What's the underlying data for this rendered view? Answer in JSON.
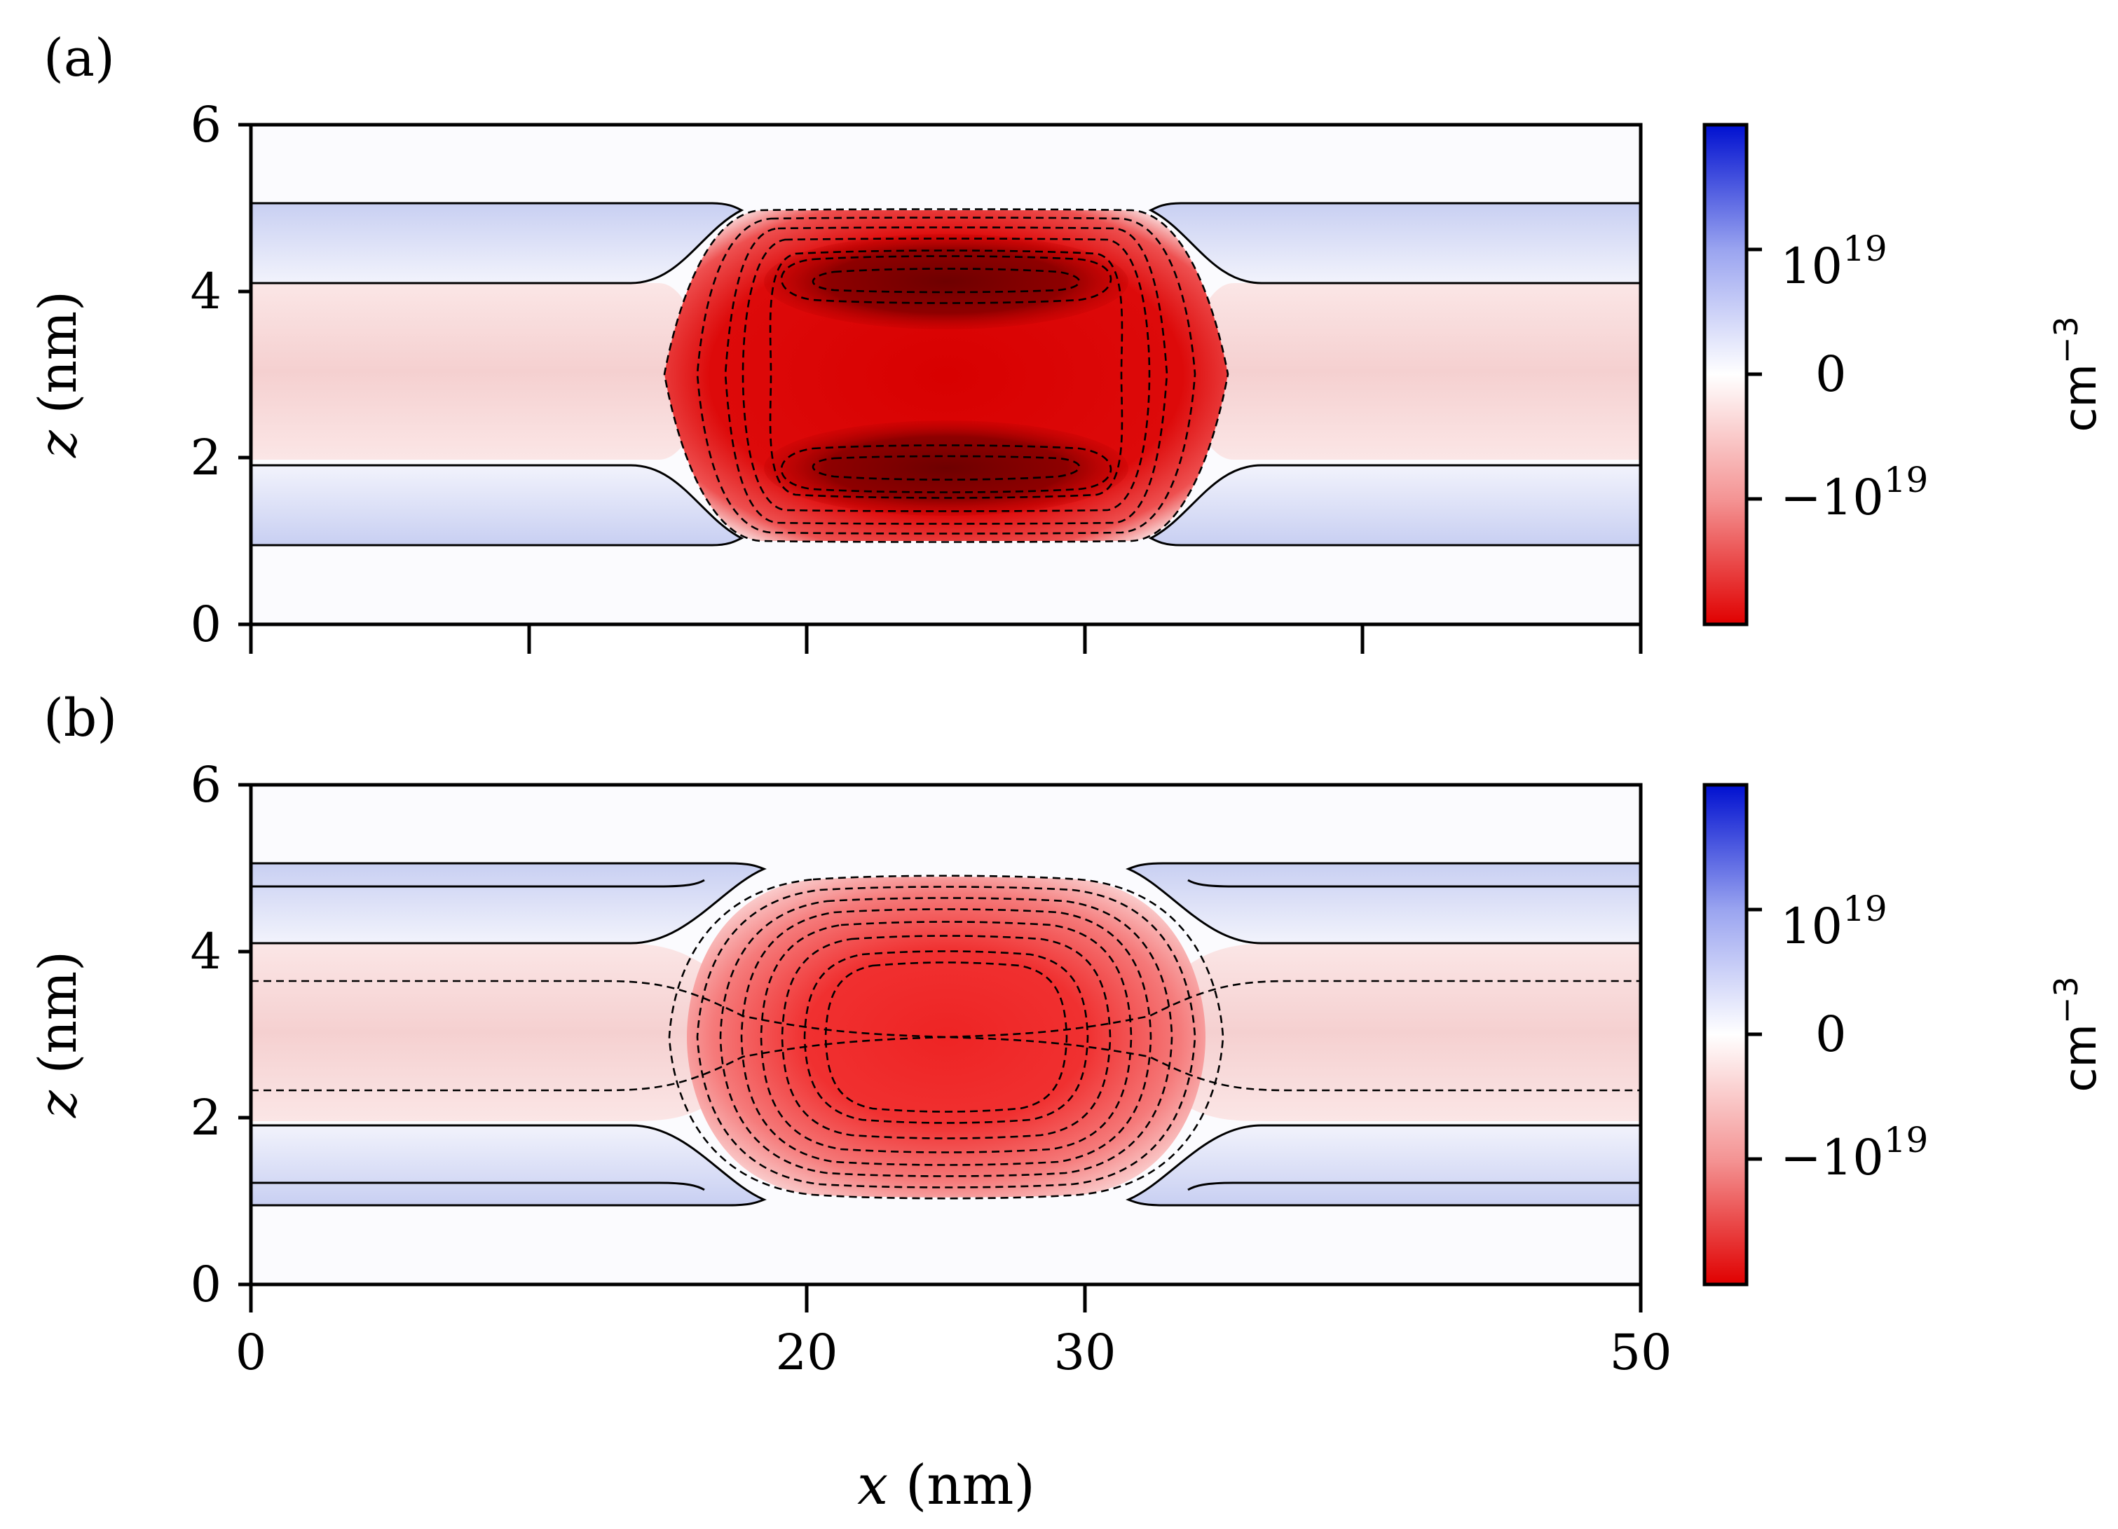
{
  "figure": {
    "x_axis": {
      "label_var": "x",
      "label_unit": "(nm)"
    },
    "colorbar": {
      "label_base": "cm",
      "label_exp": "−3",
      "tick_pos": {
        "base": "10",
        "exp": "19"
      },
      "tick_zero": "0",
      "tick_neg": {
        "base": "−10",
        "exp": "19"
      },
      "colors": {
        "neg_max": "#e00000",
        "zero": "#ffffff",
        "pos_max": "#0010d0"
      }
    },
    "colors": {
      "dark_core": "#7a0000",
      "red": "#e01010",
      "pink": "#f8dada",
      "blue_band": "#d0d6f4",
      "frame": "#000000"
    }
  },
  "chart_data": [
    {
      "type": "heatmap",
      "panel_label": "(a)",
      "xlabel": "",
      "ylabel_var": "z",
      "ylabel_unit": "(nm)",
      "xlim": [
        0,
        50
      ],
      "ylim": [
        0,
        6
      ],
      "x_ticks": [
        0,
        10,
        20,
        30,
        40,
        50
      ],
      "x_tick_labels": [],
      "y_ticks": [
        0,
        2,
        4,
        6
      ],
      "y_tick_labels": [
        "0",
        "2",
        "4",
        "6"
      ],
      "colorbar_range": [
        -2e+19,
        2e+19
      ],
      "colorbar_ticks": [
        -1e+19,
        0,
        1e+19
      ],
      "bands": [
        {
          "kind": "positive",
          "x": [
            0,
            18
          ],
          "z": [
            0.95,
            1.9
          ]
        },
        {
          "kind": "positive",
          "x": [
            0,
            18
          ],
          "z": [
            4.1,
            5.05
          ]
        },
        {
          "kind": "positive",
          "x": [
            32,
            50
          ],
          "z": [
            0.95,
            1.9
          ]
        },
        {
          "kind": "positive",
          "x": [
            32,
            50
          ],
          "z": [
            4.1,
            5.05
          ]
        }
      ],
      "core": {
        "x": [
          18.5,
          31.5
        ],
        "z": [
          1.0,
          5.0
        ],
        "center": [
          25,
          3
        ],
        "peak_lobes_z": [
          1.85,
          4.15
        ]
      }
    },
    {
      "type": "heatmap",
      "panel_label": "(b)",
      "xlabel": "x (nm)",
      "ylabel_var": "z",
      "ylabel_unit": "(nm)",
      "xlim": [
        0,
        50
      ],
      "ylim": [
        0,
        6
      ],
      "x_ticks": [
        0,
        20,
        30,
        50
      ],
      "x_tick_labels": [
        "0",
        "20",
        "30",
        "50"
      ],
      "y_ticks": [
        0,
        2,
        4,
        6
      ],
      "y_tick_labels": [
        "0",
        "2",
        "4",
        "6"
      ],
      "colorbar_range": [
        -2e+19,
        2e+19
      ],
      "colorbar_ticks": [
        -1e+19,
        0,
        1e+19
      ],
      "bands": [
        {
          "kind": "positive",
          "x": [
            0,
            17.5
          ],
          "z": [
            0.95,
            1.9
          ]
        },
        {
          "kind": "positive",
          "x": [
            0,
            17.5
          ],
          "z": [
            4.1,
            5.05
          ]
        },
        {
          "kind": "positive",
          "x": [
            33,
            50
          ],
          "z": [
            0.95,
            1.9
          ]
        },
        {
          "kind": "positive",
          "x": [
            33,
            50
          ],
          "z": [
            4.1,
            5.05
          ]
        }
      ],
      "core": {
        "x": [
          19,
          31
        ],
        "z": [
          1.1,
          4.9
        ],
        "center": [
          25,
          3
        ]
      }
    }
  ]
}
